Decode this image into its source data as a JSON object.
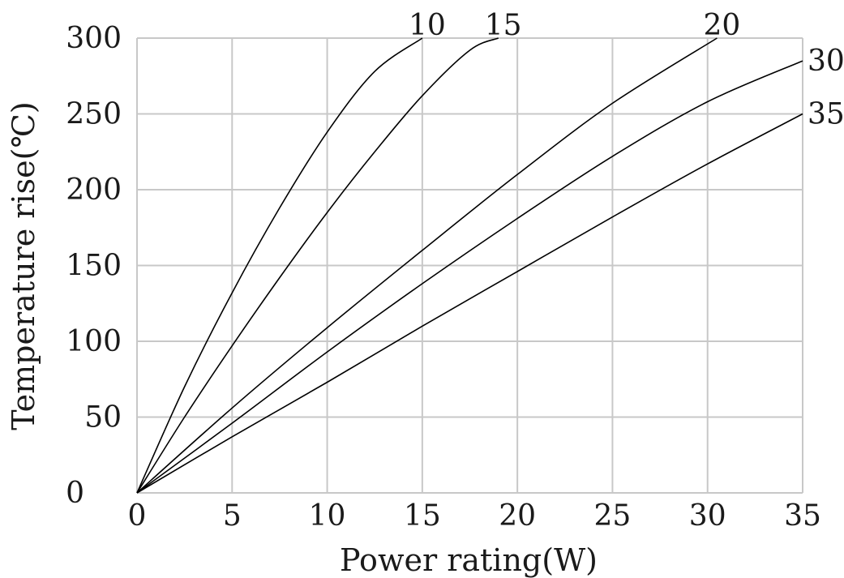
{
  "chart_data": {
    "type": "line",
    "xlabel": "Power rating(W)",
    "ylabel": "Temperature rise(℃)",
    "xlim": [
      0,
      35
    ],
    "ylim": [
      0,
      300
    ],
    "xticks": [
      0,
      5,
      10,
      15,
      20,
      25,
      30,
      35
    ],
    "yticks": [
      0,
      50,
      100,
      150,
      200,
      250,
      300
    ],
    "grid": true,
    "series": [
      {
        "name": "10",
        "x": [
          0,
          2.5,
          5,
          7.5,
          10,
          12.5,
          15
        ],
        "y": [
          0,
          70,
          132,
          188,
          238,
          278,
          300
        ]
      },
      {
        "name": "15",
        "x": [
          0,
          2.5,
          5,
          7.5,
          10,
          12.5,
          15,
          17.5,
          19
        ],
        "y": [
          0,
          50,
          97,
          142,
          185,
          225,
          262,
          292,
          300
        ]
      },
      {
        "name": "20",
        "x": [
          0,
          5,
          10,
          15,
          20,
          25,
          30.5
        ],
        "y": [
          0,
          56,
          109,
          160,
          210,
          257,
          300
        ]
      },
      {
        "name": "30",
        "x": [
          0,
          5,
          10,
          15,
          20,
          25,
          30,
          35
        ],
        "y": [
          0,
          46,
          93,
          138,
          181,
          222,
          258,
          285
        ]
      },
      {
        "name": "35",
        "x": [
          0,
          5,
          10,
          15,
          20,
          25,
          30,
          35
        ],
        "y": [
          0,
          37,
          73,
          110,
          146,
          182,
          217,
          250
        ]
      }
    ]
  }
}
